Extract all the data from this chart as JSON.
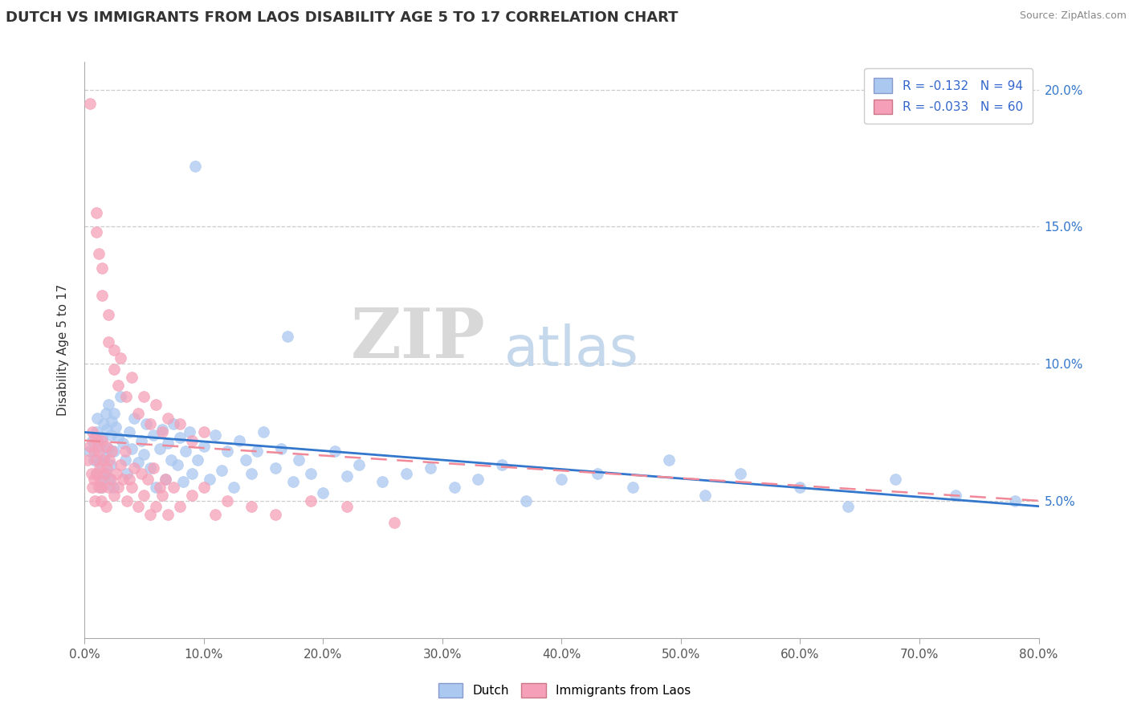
{
  "title": "DUTCH VS IMMIGRANTS FROM LAOS DISABILITY AGE 5 TO 17 CORRELATION CHART",
  "source_text": "Source: ZipAtlas.com",
  "ylabel": "Disability Age 5 to 17",
  "xlim": [
    0.0,
    0.8
  ],
  "ylim": [
    0.0,
    0.21
  ],
  "xticks": [
    0.0,
    0.1,
    0.2,
    0.3,
    0.4,
    0.5,
    0.6,
    0.7,
    0.8
  ],
  "yticks": [
    0.05,
    0.1,
    0.15,
    0.2
  ],
  "ytick_labels": [
    "5.0%",
    "10.0%",
    "15.0%",
    "20.0%"
  ],
  "xtick_labels": [
    "0.0%",
    "10.0%",
    "20.0%",
    "30.0%",
    "40.0%",
    "50.0%",
    "60.0%",
    "70.0%",
    "80.0%"
  ],
  "dutch_color": "#aac8f0",
  "laos_color": "#f5a0b8",
  "dutch_line_color": "#3377cc",
  "laos_line_color": "#f08898",
  "dutch_R": -0.132,
  "dutch_N": 94,
  "laos_R": -0.033,
  "laos_N": 60,
  "watermark_zip": "ZIP",
  "watermark_atlas": "atlas",
  "dutch_scatter_x": [
    0.005,
    0.007,
    0.008,
    0.01,
    0.01,
    0.011,
    0.012,
    0.013,
    0.014,
    0.015,
    0.015,
    0.016,
    0.017,
    0.018,
    0.018,
    0.019,
    0.02,
    0.02,
    0.021,
    0.022,
    0.022,
    0.023,
    0.024,
    0.025,
    0.025,
    0.026,
    0.028,
    0.03,
    0.032,
    0.034,
    0.036,
    0.038,
    0.04,
    0.042,
    0.045,
    0.048,
    0.05,
    0.052,
    0.055,
    0.058,
    0.06,
    0.063,
    0.065,
    0.068,
    0.07,
    0.073,
    0.075,
    0.078,
    0.08,
    0.083,
    0.085,
    0.088,
    0.09,
    0.093,
    0.095,
    0.1,
    0.105,
    0.11,
    0.115,
    0.12,
    0.125,
    0.13,
    0.135,
    0.14,
    0.145,
    0.15,
    0.16,
    0.165,
    0.17,
    0.175,
    0.18,
    0.19,
    0.2,
    0.21,
    0.22,
    0.23,
    0.25,
    0.27,
    0.29,
    0.31,
    0.33,
    0.35,
    0.37,
    0.4,
    0.43,
    0.46,
    0.49,
    0.52,
    0.55,
    0.6,
    0.64,
    0.68,
    0.73,
    0.78
  ],
  "dutch_scatter_y": [
    0.068,
    0.072,
    0.065,
    0.075,
    0.06,
    0.08,
    0.07,
    0.064,
    0.055,
    0.073,
    0.058,
    0.078,
    0.066,
    0.082,
    0.06,
    0.076,
    0.069,
    0.085,
    0.058,
    0.074,
    0.063,
    0.079,
    0.055,
    0.082,
    0.068,
    0.077,
    0.073,
    0.088,
    0.071,
    0.065,
    0.06,
    0.075,
    0.069,
    0.08,
    0.064,
    0.072,
    0.067,
    0.078,
    0.062,
    0.074,
    0.055,
    0.069,
    0.076,
    0.058,
    0.071,
    0.065,
    0.078,
    0.063,
    0.073,
    0.057,
    0.068,
    0.075,
    0.06,
    0.172,
    0.065,
    0.07,
    0.058,
    0.074,
    0.061,
    0.068,
    0.055,
    0.072,
    0.065,
    0.06,
    0.068,
    0.075,
    0.062,
    0.069,
    0.11,
    0.057,
    0.065,
    0.06,
    0.053,
    0.068,
    0.059,
    0.063,
    0.057,
    0.06,
    0.062,
    0.055,
    0.058,
    0.063,
    0.05,
    0.058,
    0.06,
    0.055,
    0.065,
    0.052,
    0.06,
    0.055,
    0.048,
    0.058,
    0.052,
    0.05
  ],
  "laos_scatter_x": [
    0.003,
    0.005,
    0.006,
    0.007,
    0.007,
    0.008,
    0.008,
    0.009,
    0.009,
    0.01,
    0.01,
    0.011,
    0.012,
    0.012,
    0.013,
    0.013,
    0.014,
    0.015,
    0.015,
    0.016,
    0.017,
    0.018,
    0.018,
    0.019,
    0.02,
    0.021,
    0.022,
    0.023,
    0.025,
    0.027,
    0.028,
    0.03,
    0.032,
    0.034,
    0.036,
    0.038,
    0.04,
    0.042,
    0.045,
    0.048,
    0.05,
    0.053,
    0.055,
    0.058,
    0.06,
    0.063,
    0.065,
    0.068,
    0.07,
    0.075,
    0.08,
    0.09,
    0.1,
    0.11,
    0.12,
    0.14,
    0.16,
    0.19,
    0.22,
    0.26
  ],
  "laos_scatter_y": [
    0.065,
    0.07,
    0.06,
    0.075,
    0.055,
    0.068,
    0.058,
    0.073,
    0.05,
    0.065,
    0.06,
    0.072,
    0.055,
    0.068,
    0.058,
    0.062,
    0.05,
    0.072,
    0.055,
    0.065,
    0.06,
    0.07,
    0.048,
    0.062,
    0.055,
    0.065,
    0.058,
    0.068,
    0.052,
    0.06,
    0.055,
    0.063,
    0.058,
    0.068,
    0.05,
    0.058,
    0.055,
    0.062,
    0.048,
    0.06,
    0.052,
    0.058,
    0.045,
    0.062,
    0.048,
    0.055,
    0.052,
    0.058,
    0.045,
    0.055,
    0.048,
    0.052,
    0.055,
    0.045,
    0.05,
    0.048,
    0.045,
    0.05,
    0.048,
    0.042
  ],
  "laos_high_x": [
    0.005,
    0.01,
    0.01,
    0.012,
    0.015,
    0.015,
    0.02,
    0.02,
    0.025,
    0.025,
    0.028,
    0.03,
    0.035,
    0.04,
    0.045,
    0.05,
    0.055,
    0.06,
    0.065,
    0.07,
    0.08,
    0.09,
    0.1
  ],
  "laos_high_y": [
    0.195,
    0.155,
    0.148,
    0.14,
    0.135,
    0.125,
    0.118,
    0.108,
    0.105,
    0.098,
    0.092,
    0.102,
    0.088,
    0.095,
    0.082,
    0.088,
    0.078,
    0.085,
    0.075,
    0.08,
    0.078,
    0.072,
    0.075
  ],
  "dutch_trend_x": [
    0.0,
    0.8
  ],
  "dutch_trend_y": [
    0.075,
    0.048
  ],
  "laos_trend_x": [
    0.0,
    0.8
  ],
  "laos_trend_y": [
    0.072,
    0.05
  ]
}
